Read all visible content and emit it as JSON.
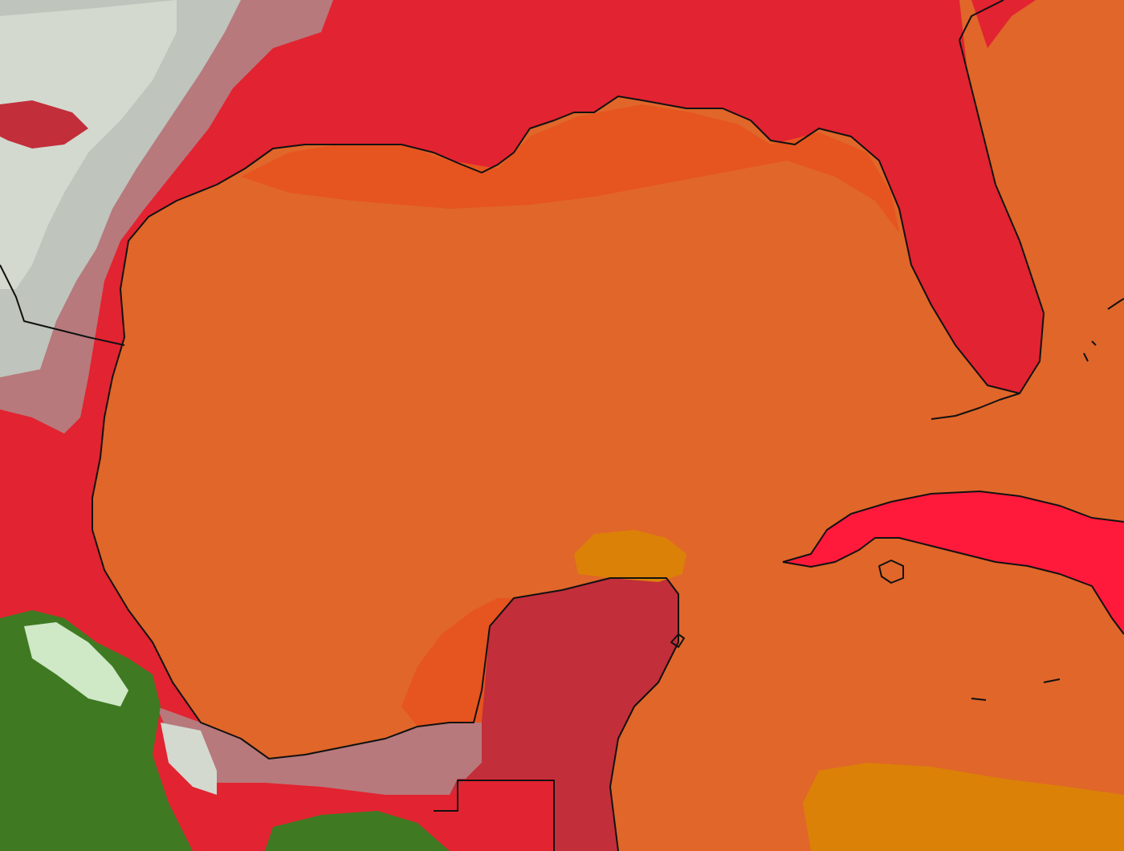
{
  "map": {
    "region": "gulf-of-mexico",
    "projection": "cylindrical",
    "fields": {
      "ocean_warm": "#e0662a",
      "ocean_hot": "#db8108",
      "ocean_coastal": "#e6541f",
      "land_hot": "#e22331",
      "land_dry": "#c22e3a",
      "land_coastal_band": "#ff1a3b",
      "land_pale": "#b7797c",
      "land_grey": "#bfc4bc",
      "land_light_grey": "#d3d9cf",
      "veg_green_dark": "#3f7a22",
      "veg_green_light": "#cfe8c6",
      "coastline": "#111111"
    },
    "features": [
      "texas-coast",
      "louisiana-delta",
      "florida-peninsula",
      "cuba",
      "yucatan-peninsula",
      "mexico-gulf-coast",
      "florida-keys",
      "bahamas-islands"
    ]
  }
}
